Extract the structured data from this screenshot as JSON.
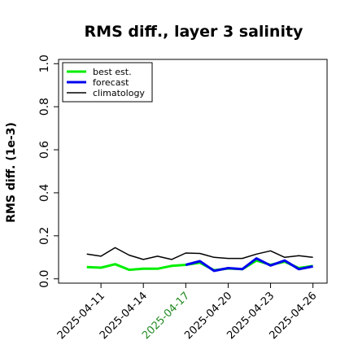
{
  "chart_data": {
    "type": "line",
    "title": "RMS diff., layer 3 salinity",
    "xlabel": "",
    "ylabel": "RMS diff. (1e-3)",
    "ylim": [
      -0.02,
      1.02
    ],
    "yticks": [
      "0.0",
      "0.2",
      "0.4",
      "0.6",
      "0.8",
      "1.0"
    ],
    "x_tick_labels": [
      {
        "label": "2025-04-11",
        "color": "#000000"
      },
      {
        "label": "2025-04-14",
        "color": "#000000"
      },
      {
        "label": "2025-04-17",
        "color": "#228b22"
      },
      {
        "label": "2025-04-20",
        "color": "#000000"
      },
      {
        "label": "2025-04-23",
        "color": "#000000"
      },
      {
        "label": "2025-04-26",
        "color": "#000000"
      }
    ],
    "x": [
      "2025-04-10",
      "2025-04-11",
      "2025-04-12",
      "2025-04-13",
      "2025-04-14",
      "2025-04-15",
      "2025-04-16",
      "2025-04-17",
      "2025-04-18",
      "2025-04-19",
      "2025-04-20",
      "2025-04-21",
      "2025-04-22",
      "2025-04-23",
      "2025-04-24",
      "2025-04-25",
      "2025-04-26"
    ],
    "x_range": [
      "2025-04-08",
      "2025-04-27"
    ],
    "legend_position": "top-left",
    "grid": false,
    "series": [
      {
        "name": "climatology",
        "color": "#000000",
        "width": 1.5,
        "values": [
          0.115,
          0.105,
          0.145,
          0.11,
          0.09,
          0.105,
          0.09,
          0.12,
          0.118,
          0.1,
          0.095,
          0.095,
          0.115,
          0.13,
          0.1,
          0.108,
          0.1
        ]
      },
      {
        "name": "best est.",
        "color": "#00ee00",
        "width": 3,
        "values": [
          0.055,
          0.052,
          0.068,
          0.042,
          0.047,
          0.047,
          0.06,
          0.065,
          0.075,
          0.04,
          0.048,
          0.045,
          0.085,
          0.065,
          0.08,
          0.05,
          0.06
        ]
      },
      {
        "name": "forecast",
        "color": "#0000ee",
        "width": 3,
        "values": [
          null,
          null,
          null,
          null,
          null,
          null,
          null,
          0.065,
          0.082,
          0.037,
          0.05,
          0.045,
          0.095,
          0.062,
          0.085,
          0.045,
          0.058
        ]
      }
    ]
  }
}
